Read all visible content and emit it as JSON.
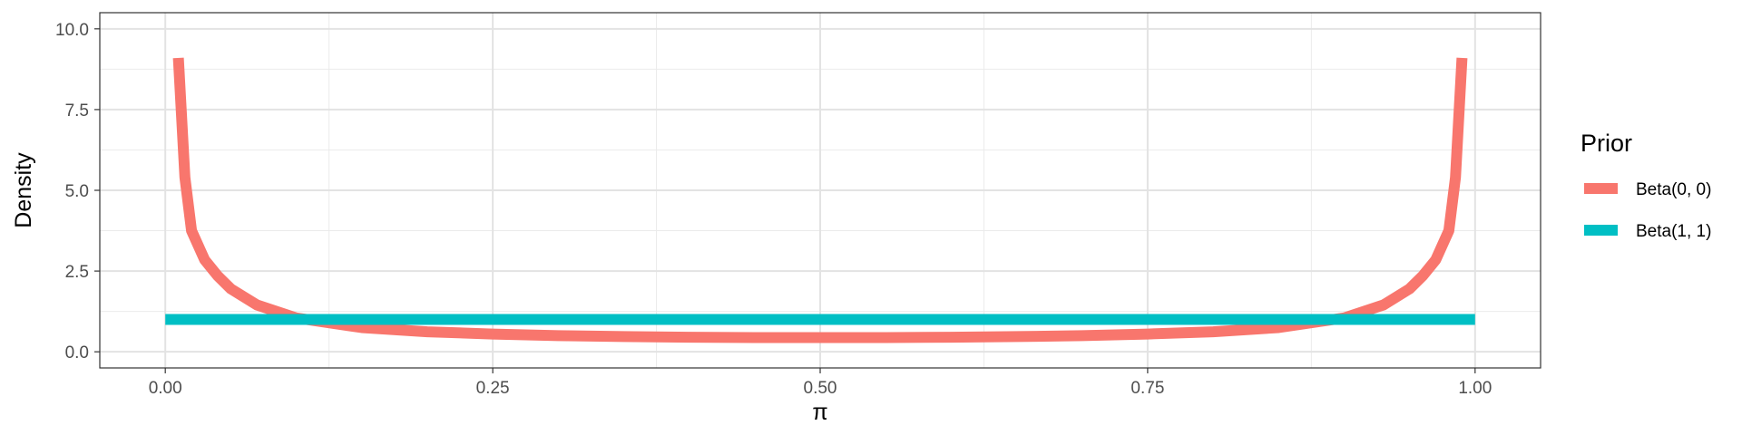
{
  "chart_data": {
    "type": "line",
    "xlabel": "π",
    "ylabel": "Density",
    "xlim": [
      -0.05,
      1.05
    ],
    "ylim": [
      -0.5,
      10.5
    ],
    "x_ticks": [
      0.0,
      0.25,
      0.5,
      0.75,
      1.0
    ],
    "x_tick_labels": [
      "0.00",
      "0.25",
      "0.50",
      "0.75",
      "1.00"
    ],
    "y_ticks": [
      0.0,
      2.5,
      5.0,
      7.5,
      10.0
    ],
    "y_tick_labels": [
      "0.0",
      "2.5",
      "5.0",
      "7.5",
      "10.0"
    ],
    "grid": true,
    "legend": {
      "title": "Prior",
      "placement": "right"
    },
    "series": [
      {
        "name": "Beta(0, 0)",
        "color": "#F8766D",
        "x": [
          0.01,
          0.015,
          0.02,
          0.03,
          0.04,
          0.05,
          0.07,
          0.1,
          0.15,
          0.2,
          0.25,
          0.3,
          0.35,
          0.4,
          0.45,
          0.5,
          0.55,
          0.6,
          0.65,
          0.7,
          0.75,
          0.8,
          0.85,
          0.9,
          0.93,
          0.95,
          0.96,
          0.97,
          0.98,
          0.985,
          0.99
        ],
        "y": [
          9.1,
          5.4,
          3.75,
          2.85,
          2.35,
          1.95,
          1.45,
          1.05,
          0.75,
          0.62,
          0.55,
          0.5,
          0.47,
          0.45,
          0.44,
          0.44,
          0.44,
          0.45,
          0.47,
          0.5,
          0.55,
          0.62,
          0.75,
          1.05,
          1.45,
          1.95,
          2.35,
          2.85,
          3.75,
          5.4,
          9.1
        ]
      },
      {
        "name": "Beta(1, 1)",
        "color": "#00BFC4",
        "x": [
          0.0,
          1.0
        ],
        "y": [
          1.0,
          1.0
        ]
      }
    ]
  }
}
